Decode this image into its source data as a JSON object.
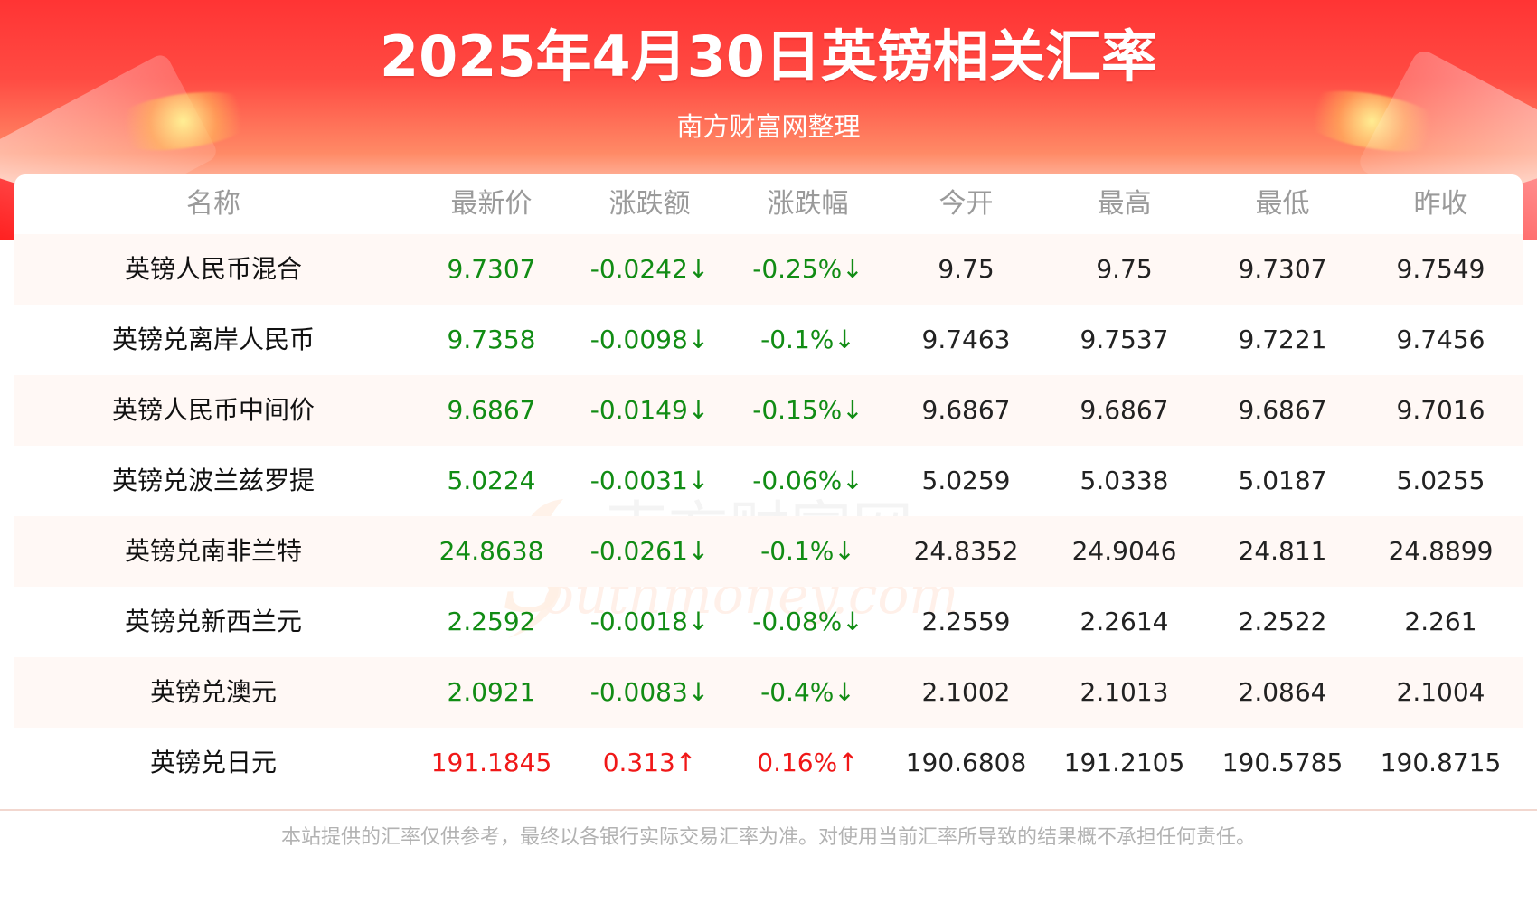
{
  "header": {
    "title": "2025年4月30日英镑相关汇率",
    "subtitle": "南方财富网整理"
  },
  "watermark": {
    "chinese": "南方财富网",
    "english": "outhmoney.com",
    "initial": "S"
  },
  "table": {
    "columns": [
      "名称",
      "最新价",
      "涨跌额",
      "涨跌幅",
      "今开",
      "最高",
      "最低",
      "昨收"
    ],
    "rows": [
      {
        "name": "英镑人民币混合",
        "latest": "9.7307",
        "change": "-0.0242↓",
        "change_pct": "-0.25%↓",
        "open": "9.75",
        "high": "9.75",
        "low": "9.7307",
        "prev_close": "9.7549",
        "trend": "down"
      },
      {
        "name": "英镑兑离岸人民币",
        "latest": "9.7358",
        "change": "-0.0098↓",
        "change_pct": "-0.1%↓",
        "open": "9.7463",
        "high": "9.7537",
        "low": "9.7221",
        "prev_close": "9.7456",
        "trend": "down"
      },
      {
        "name": "英镑人民币中间价",
        "latest": "9.6867",
        "change": "-0.0149↓",
        "change_pct": "-0.15%↓",
        "open": "9.6867",
        "high": "9.6867",
        "low": "9.6867",
        "prev_close": "9.7016",
        "trend": "down"
      },
      {
        "name": "英镑兑波兰兹罗提",
        "latest": "5.0224",
        "change": "-0.0031↓",
        "change_pct": "-0.06%↓",
        "open": "5.0259",
        "high": "5.0338",
        "low": "5.0187",
        "prev_close": "5.0255",
        "trend": "down"
      },
      {
        "name": "英镑兑南非兰特",
        "latest": "24.8638",
        "change": "-0.0261↓",
        "change_pct": "-0.1%↓",
        "open": "24.8352",
        "high": "24.9046",
        "low": "24.811",
        "prev_close": "24.8899",
        "trend": "down"
      },
      {
        "name": "英镑兑新西兰元",
        "latest": "2.2592",
        "change": "-0.0018↓",
        "change_pct": "-0.08%↓",
        "open": "2.2559",
        "high": "2.2614",
        "low": "2.2522",
        "prev_close": "2.261",
        "trend": "down"
      },
      {
        "name": "英镑兑澳元",
        "latest": "2.0921",
        "change": "-0.0083↓",
        "change_pct": "-0.4%↓",
        "open": "2.1002",
        "high": "2.1013",
        "low": "2.0864",
        "prev_close": "2.1004",
        "trend": "down"
      },
      {
        "name": "英镑兑日元",
        "latest": "191.1845",
        "change": "0.313↑",
        "change_pct": "0.16%↑",
        "open": "190.6808",
        "high": "191.2105",
        "low": "190.5785",
        "prev_close": "190.8715",
        "trend": "up"
      }
    ]
  },
  "footer": {
    "disclaimer": "本站提供的汇率仅供参考，最终以各银行实际交易汇率为准。对使用当前汇率所导致的结果概不承担任何责任。"
  },
  "colors": {
    "accent_red": "#ff3434",
    "down_green": "#118c14",
    "up_red": "#f01818",
    "header_gray": "#9a9a9a",
    "row_tint": "#fff8f5"
  }
}
